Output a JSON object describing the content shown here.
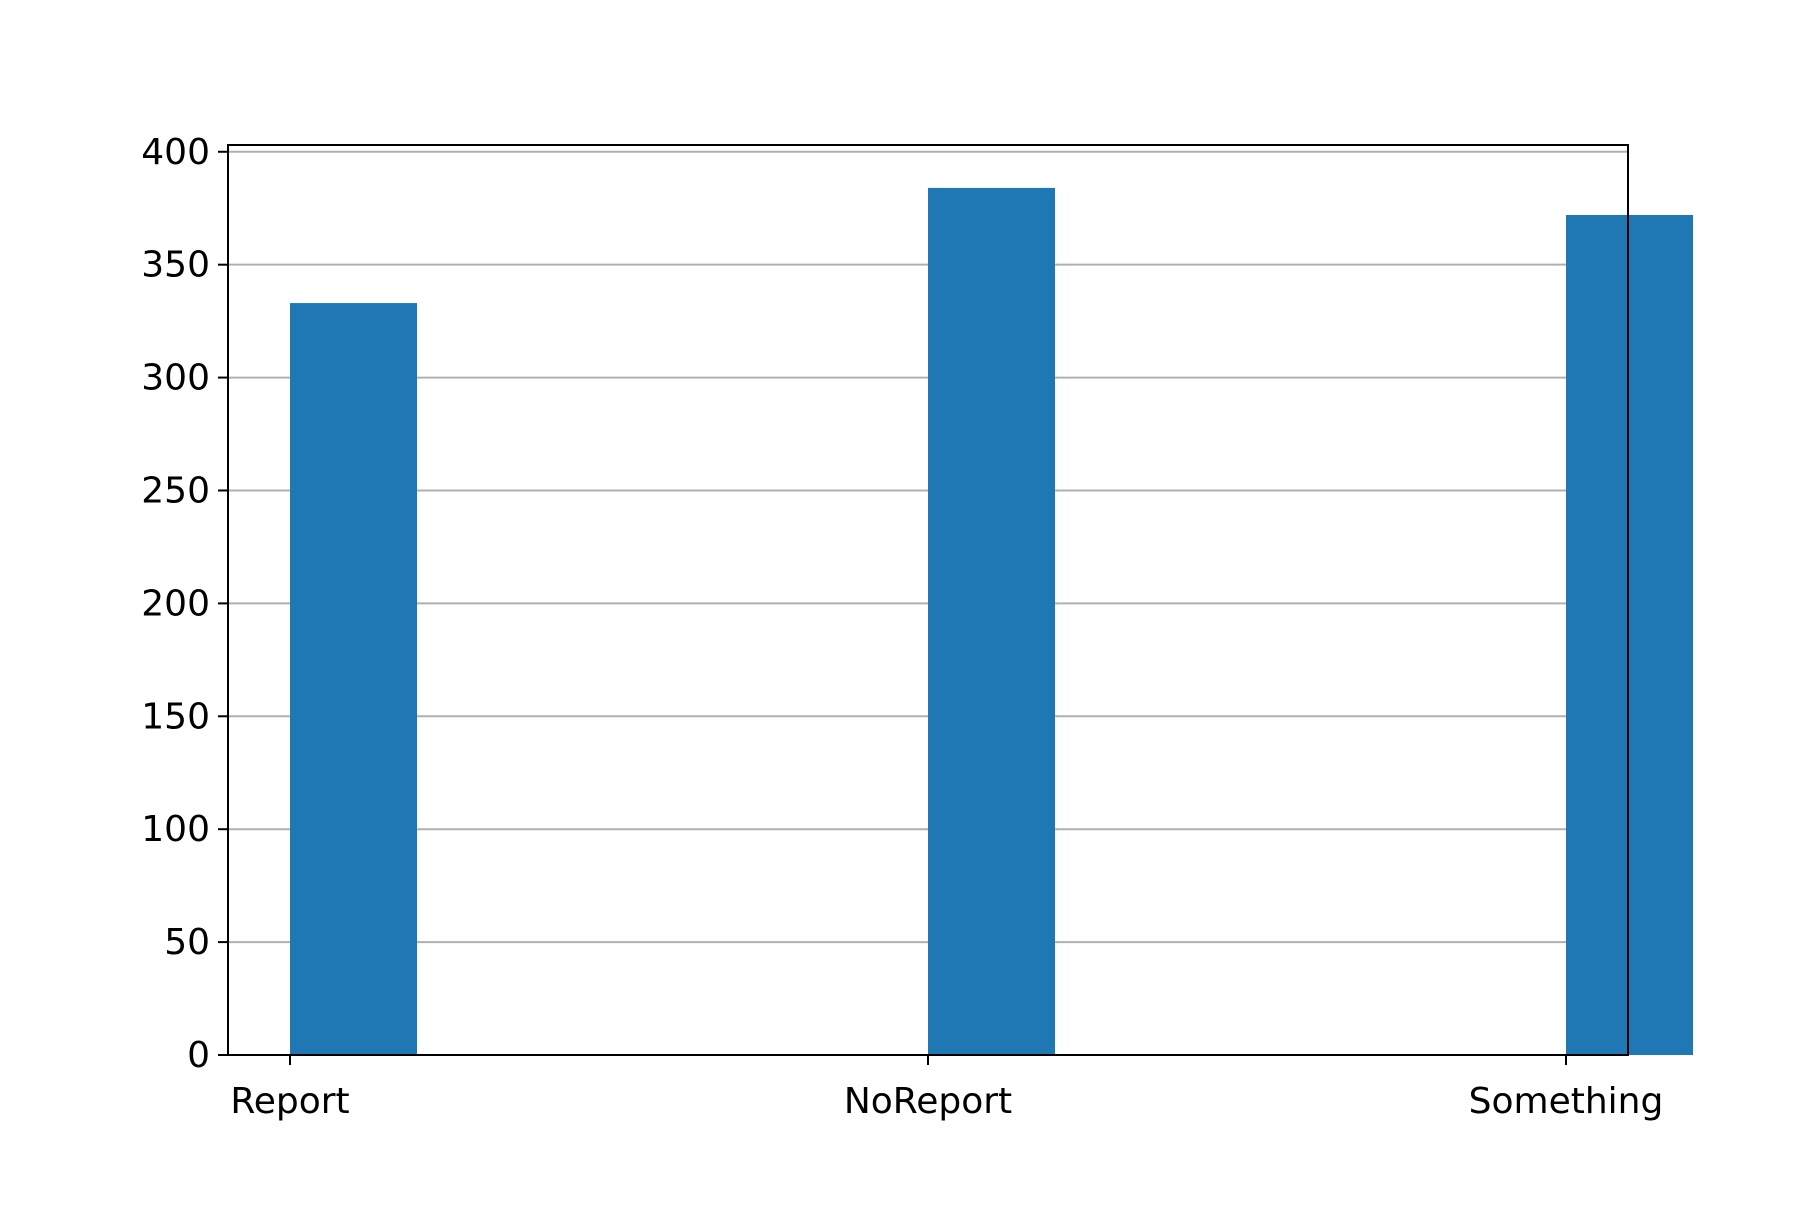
{
  "chart_data": {
    "type": "bar",
    "title": "",
    "xlabel": "",
    "ylabel": "",
    "categories": [
      "Report",
      "NoReport",
      "Something"
    ],
    "values": [
      333,
      384,
      372
    ],
    "ylim": [
      0,
      403
    ],
    "yticks": [
      0,
      50,
      100,
      150,
      200,
      250,
      300,
      350,
      400
    ],
    "grid": "horizontal",
    "bar_color": "#1f77b4",
    "grid_color": "#b0b0b0"
  }
}
